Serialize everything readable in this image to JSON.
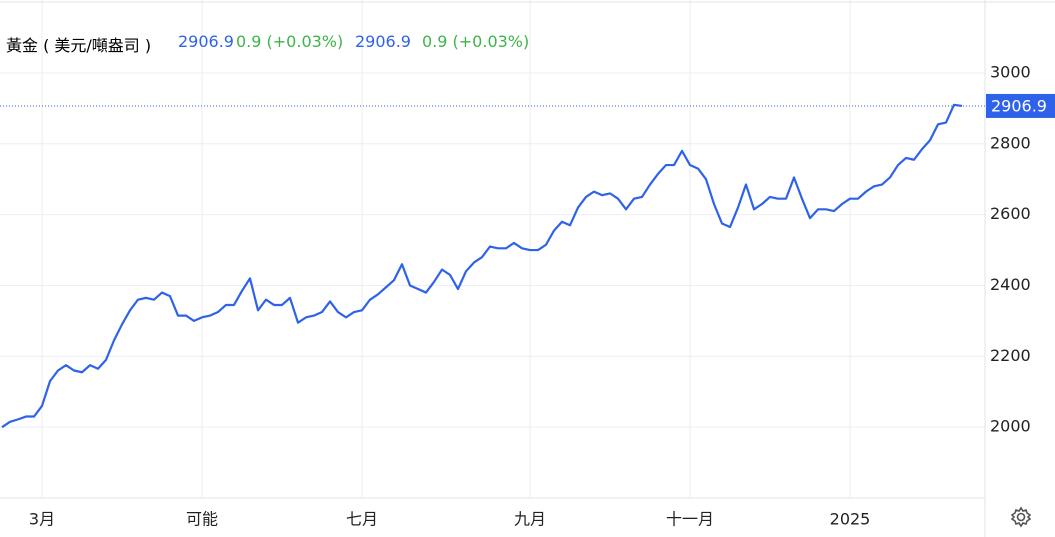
{
  "chart_data": {
    "type": "line",
    "title": "黃金 ( 美元/噸盎司 )",
    "change_label": "0.9 (+0.03%)",
    "color": "#2f62ea",
    "change_color": "#3cb54a",
    "categories": [
      null,
      null,
      null,
      null,
      null,
      "3月",
      null,
      null,
      null,
      null,
      null,
      null,
      null,
      null,
      null,
      null,
      null,
      null,
      null,
      null,
      null,
      null,
      null,
      null,
      null,
      "可能",
      null,
      null,
      null,
      null,
      null,
      null,
      null,
      null,
      null,
      null,
      null,
      null,
      null,
      null,
      null,
      null,
      null,
      null,
      null,
      "七月",
      null,
      null,
      null,
      null,
      null,
      null,
      null,
      null,
      null,
      null,
      null,
      null,
      null,
      null,
      null,
      null,
      null,
      null,
      null,
      null,
      "九月",
      null,
      null,
      null,
      null,
      null,
      null,
      null,
      null,
      null,
      null,
      null,
      null,
      null,
      null,
      null,
      null,
      null,
      null,
      null,
      "十一月",
      null,
      null,
      null,
      null,
      null,
      null,
      null,
      null,
      null,
      null,
      null,
      null,
      null,
      null,
      null,
      null,
      null,
      null,
      null,
      "2025",
      null,
      null,
      null,
      null,
      null,
      null,
      null,
      null,
      null,
      null,
      null,
      null,
      null,
      null
    ],
    "values": [
      2000,
      2015,
      2022,
      2030,
      2030,
      2060,
      2130,
      2160,
      2175,
      2160,
      2155,
      2175,
      2165,
      2190,
      2245,
      2290,
      2330,
      2360,
      2365,
      2360,
      2380,
      2370,
      2315,
      2315,
      2300,
      2310,
      2315,
      2325,
      2345,
      2345,
      2385,
      2420,
      2330,
      2360,
      2345,
      2345,
      2365,
      2295,
      2310,
      2315,
      2325,
      2355,
      2325,
      2310,
      2325,
      2330,
      2360,
      2375,
      2395,
      2415,
      2460,
      2400,
      2390,
      2380,
      2410,
      2445,
      2430,
      2390,
      2440,
      2465,
      2480,
      2510,
      2505,
      2505,
      2520,
      2505,
      2500,
      2500,
      2515,
      2555,
      2580,
      2570,
      2620,
      2650,
      2665,
      2655,
      2660,
      2645,
      2615,
      2645,
      2650,
      2685,
      2715,
      2740,
      2740,
      2780,
      2740,
      2730,
      2700,
      2630,
      2575,
      2565,
      2620,
      2685,
      2615,
      2630,
      2650,
      2645,
      2645,
      2705,
      2645,
      2590,
      2615,
      2615,
      2610,
      2630,
      2645,
      2645,
      2665,
      2680,
      2685,
      2705,
      2740,
      2760,
      2755,
      2785,
      2810,
      2855,
      2860,
      2910,
      2906.9
    ],
    "ylim": [
      1800,
      3206
    ],
    "yticks": [
      2000,
      2200,
      2400,
      2600,
      2800,
      3000
    ],
    "grid": true
  }
}
